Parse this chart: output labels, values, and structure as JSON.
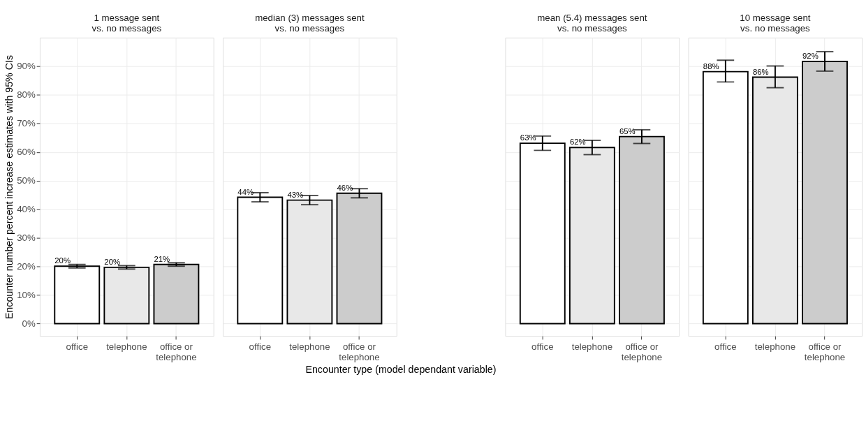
{
  "chart_data": [
    {
      "type": "bar",
      "title": "1 message sent\nvs. no messages",
      "ylabel": "Encounter number percent increase estimates with 95% CIs",
      "categories": [
        "office",
        "telephone",
        "office or telephone"
      ],
      "values": [
        20.1,
        19.7,
        20.7
      ],
      "errors": [
        0.6,
        0.6,
        0.6
      ],
      "colors": [
        "#ffffff",
        "#e8e8e8",
        "#cccccc"
      ],
      "value_labels": [
        "20%",
        "20%",
        "21%"
      ],
      "ylim": [
        -4.3,
        100
      ],
      "yticks": [
        {
          "value": 0,
          "label": "0%"
        },
        {
          "value": 10,
          "label": "10%"
        },
        {
          "value": 20,
          "label": "20%"
        },
        {
          "value": 30,
          "label": "30%"
        },
        {
          "value": 40,
          "label": "40%"
        },
        {
          "value": 50,
          "label": "50%"
        },
        {
          "value": 60,
          "label": "60%"
        },
        {
          "value": 70,
          "label": "70%"
        },
        {
          "value": 80,
          "label": "80%"
        },
        {
          "value": 90,
          "label": "90%"
        }
      ],
      "grid": true
    },
    {
      "type": "bar",
      "title": "median (3) messages sent\nvs. no messages",
      "xlabel": "Encounter type (model dependant variable)",
      "categories": [
        "office",
        "telephone",
        "office or telephone"
      ],
      "values": [
        44.2,
        43.2,
        45.6
      ],
      "errors": [
        1.6,
        1.6,
        1.6
      ],
      "colors": [
        "#ffffff",
        "#e8e8e8",
        "#cccccc"
      ],
      "value_labels": [
        "44%",
        "43%",
        "46%"
      ],
      "ylim": [
        -4.3,
        100
      ],
      "yticks": [
        {
          "value": 0,
          "label": null
        },
        {
          "value": 10,
          "label": null
        },
        {
          "value": 20,
          "label": null
        },
        {
          "value": 30,
          "label": null
        },
        {
          "value": 40,
          "label": null
        },
        {
          "value": 50,
          "label": null
        },
        {
          "value": 60,
          "label": null
        },
        {
          "value": 70,
          "label": null
        },
        {
          "value": 80,
          "label": null
        },
        {
          "value": 90,
          "label": null
        }
      ],
      "grid": true,
      "tick_labels": "x"
    },
    {
      "type": "bar",
      "title": "mean (5.4) messages sent\nvs. no messages",
      "categories": [
        "office",
        "telephone",
        "office or telephone"
      ],
      "values": [
        63.1,
        61.6,
        65.4
      ],
      "errors": [
        2.5,
        2.5,
        2.4
      ],
      "colors": [
        "#ffffff",
        "#e8e8e8",
        "#cccccc"
      ],
      "value_labels": [
        "63%",
        "62%",
        "65%"
      ],
      "ylim": [
        -4.3,
        100
      ],
      "yticks": [
        {
          "value": 0,
          "label": null
        },
        {
          "value": 10,
          "label": null
        },
        {
          "value": 20,
          "label": null
        },
        {
          "value": 30,
          "label": null
        },
        {
          "value": 40,
          "label": null
        },
        {
          "value": 50,
          "label": null
        },
        {
          "value": 60,
          "label": null
        },
        {
          "value": 70,
          "label": null
        },
        {
          "value": 80,
          "label": null
        },
        {
          "value": 90,
          "label": null
        }
      ],
      "grid": true,
      "tick_labels": "x"
    },
    {
      "type": "bar",
      "title": "10 message sent\nvs. no messages",
      "categories": [
        "office",
        "telephone",
        "office or telephone"
      ],
      "values": [
        88.1,
        86.2,
        91.7
      ],
      "errors": [
        [
          84.5,
          92.1
        ],
        [
          82.5,
          90.1
        ],
        [
          88.3,
          95.1
        ]
      ],
      "colors": [
        "#ffffff",
        "#e8e8e8",
        "#cccccc"
      ],
      "value_labels": [
        "88%",
        "86%",
        "92%"
      ],
      "ylim": [
        -4.3,
        100
      ],
      "yticks": [
        {
          "value": 0,
          "label": null
        },
        {
          "value": 10,
          "label": null
        },
        {
          "value": 20,
          "label": null
        },
        {
          "value": 30,
          "label": null
        },
        {
          "value": 40,
          "label": null
        },
        {
          "value": 50,
          "label": null
        },
        {
          "value": 60,
          "label": null
        },
        {
          "value": 70,
          "label": null
        },
        {
          "value": 80,
          "label": null
        },
        {
          "value": 90,
          "label": null
        }
      ],
      "grid": true,
      "tick_labels": "x"
    }
  ]
}
